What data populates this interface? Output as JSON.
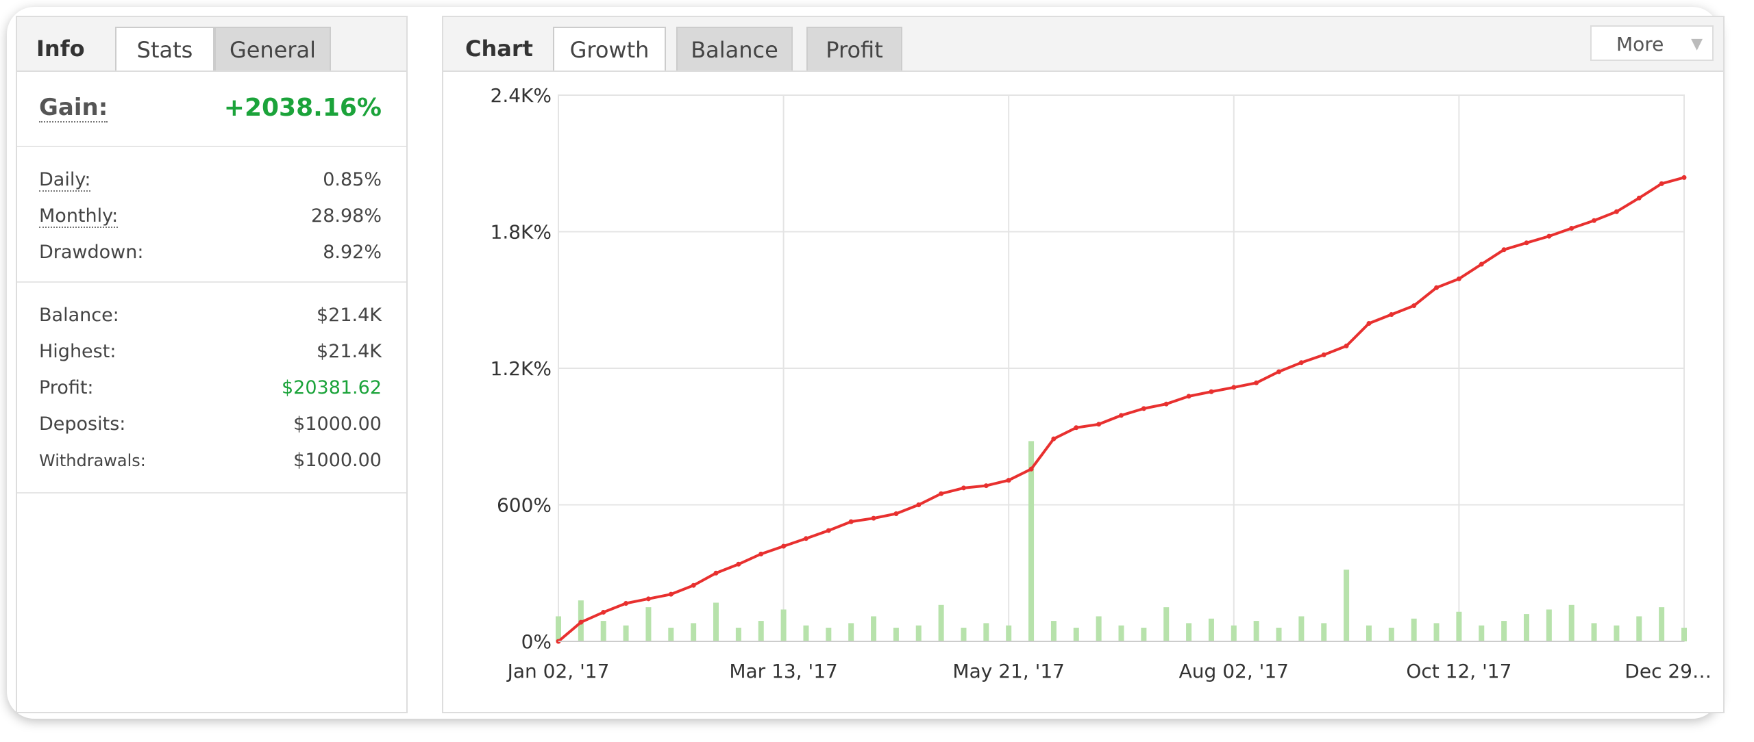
{
  "info": {
    "tabs": [
      "Info",
      "Stats",
      "General"
    ],
    "gain": {
      "label": "Gain:",
      "value": "+2038.16%"
    },
    "groups": [
      [
        [
          "Daily:",
          "0.85%"
        ],
        [
          "Monthly:",
          "28.98%"
        ],
        [
          "Drawdown:",
          "8.92%"
        ]
      ],
      [
        [
          "Balance:",
          "$21.4K"
        ],
        [
          "Highest:",
          "$21.4K"
        ],
        [
          "Profit:",
          "$20381.62"
        ],
        [
          "Deposits:",
          "$1000.00"
        ],
        [
          "Withdrawals:",
          "$1000.00"
        ]
      ]
    ]
  },
  "chart_tabs": [
    "Chart",
    "Growth",
    "Balance",
    "Profit"
  ],
  "more": "More",
  "chart_data": {
    "type": "line",
    "categories": [
      "Jan 02, '17",
      null,
      null,
      null,
      null,
      null,
      null,
      null,
      null,
      null,
      "Mar 13, '17",
      null,
      null,
      null,
      null,
      null,
      null,
      null,
      null,
      null,
      "May 21, '17",
      null,
      null,
      null,
      null,
      null,
      null,
      null,
      null,
      null,
      "Aug 02, '17",
      null,
      null,
      null,
      null,
      null,
      null,
      null,
      null,
      null,
      "Oct 12, '17",
      null,
      null,
      null,
      null,
      null,
      null,
      null,
      null,
      null,
      "Dec 29…"
    ],
    "series": [
      {
        "type": "line",
        "color": "#e8302f",
        "values": [
          0,
          84,
          128,
          167,
          187,
          207,
          246,
          300,
          339,
          384,
          418,
          452,
          487,
          526,
          541,
          561,
          600,
          649,
          674,
          684,
          708,
          757,
          890,
          939,
          954,
          993,
          1023,
          1043,
          1077,
          1097,
          1116,
          1136,
          1185,
          1225,
          1259,
          1298,
          1397,
          1436,
          1475,
          1554,
          1593,
          1657,
          1721,
          1751,
          1780,
          1815,
          1849,
          1888,
          1948,
          2011,
          2038
        ]
      },
      {
        "type": "bar",
        "color": "#b7e2ab",
        "values": [
          110,
          180,
          90,
          70,
          150,
          60,
          80,
          170,
          60,
          90,
          140,
          70,
          60,
          80,
          110,
          60,
          70,
          160,
          60,
          80,
          70,
          880,
          90,
          60,
          110,
          70,
          60,
          150,
          80,
          100,
          70,
          90,
          60,
          110,
          80,
          315,
          70,
          60,
          100,
          80,
          130,
          70,
          90,
          120,
          140,
          160,
          80,
          70,
          110,
          150,
          60
        ]
      }
    ],
    "ylim": [
      0,
      2400
    ],
    "yticks": [
      {
        "value": 0,
        "label": "0%"
      },
      {
        "value": 600,
        "label": "600%"
      },
      {
        "value": 1200,
        "label": "1.2K%"
      },
      {
        "value": 1800,
        "label": "1.8K%"
      },
      {
        "value": 2400,
        "label": "2.4K%"
      }
    ],
    "grid": true
  }
}
